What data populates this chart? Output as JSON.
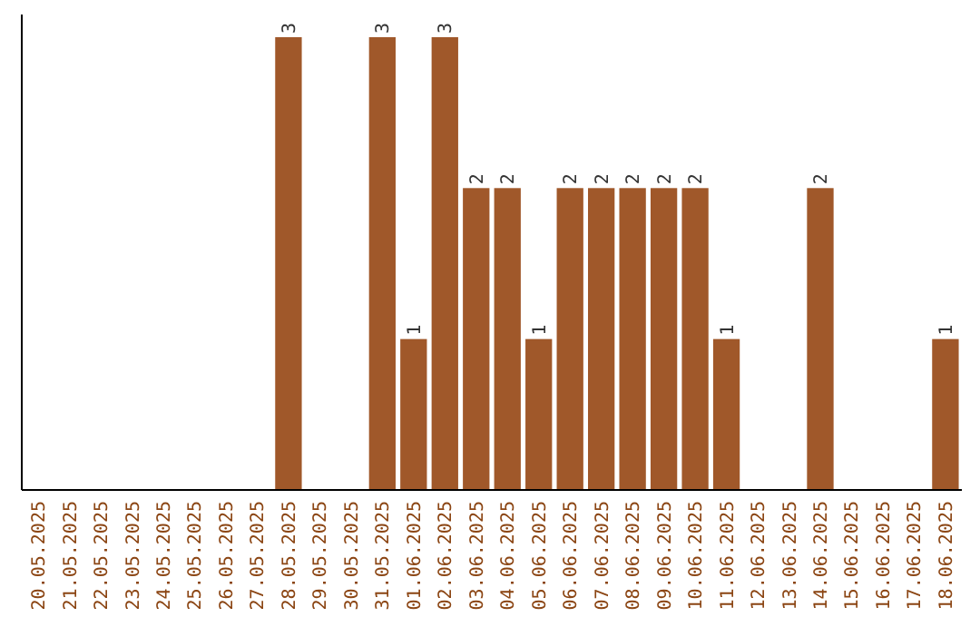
{
  "chart_data": {
    "type": "bar",
    "categories": [
      "20.05.2025",
      "21.05.2025",
      "22.05.2025",
      "23.05.2025",
      "24.05.2025",
      "25.05.2025",
      "26.05.2025",
      "27.05.2025",
      "28.05.2025",
      "29.05.2025",
      "30.05.2025",
      "31.05.2025",
      "01.06.2025",
      "02.06.2025",
      "03.06.2025",
      "04.06.2025",
      "05.06.2025",
      "06.06.2025",
      "07.06.2025",
      "08.06.2025",
      "09.06.2025",
      "10.06.2025",
      "11.06.2025",
      "12.06.2025",
      "13.06.2025",
      "14.06.2025",
      "15.06.2025",
      "16.06.2025",
      "17.06.2025",
      "18.06.2025"
    ],
    "values": [
      0,
      0,
      0,
      0,
      0,
      0,
      0,
      0,
      3,
      0,
      0,
      3,
      1,
      3,
      2,
      2,
      1,
      2,
      2,
      2,
      2,
      2,
      1,
      0,
      0,
      2,
      0,
      0,
      0,
      1
    ],
    "value_labels": [
      null,
      null,
      null,
      null,
      null,
      null,
      null,
      null,
      "3",
      null,
      null,
      "3",
      "1",
      "3",
      "2",
      "2",
      "1",
      "2",
      "2",
      "2",
      "2",
      "2",
      "1",
      null,
      null,
      "2",
      null,
      null,
      null,
      "1"
    ],
    "color": "#a0582a",
    "ylim": [
      0,
      3.15
    ],
    "tick_labels": "x"
  }
}
